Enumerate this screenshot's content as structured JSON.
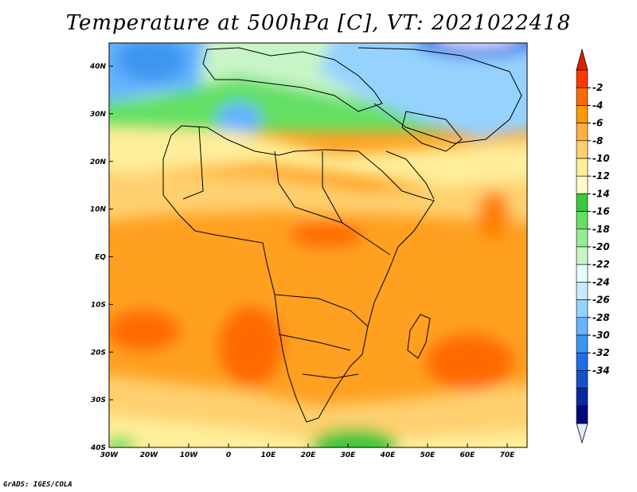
{
  "title": "Temperature at 500hPa [C], VT: 2021022418",
  "footer": "GrADS: IGES/COLA",
  "map": {
    "lon_ticks": [
      "30W",
      "20W",
      "10W",
      "0",
      "10E",
      "20E",
      "30E",
      "40E",
      "50E",
      "60E",
      "70E"
    ],
    "lat_ticks": [
      "40N",
      "30N",
      "20N",
      "10N",
      "EQ",
      "10S",
      "20S",
      "30S",
      "40S"
    ]
  },
  "colorbar": {
    "labels": [
      "-2",
      "-4",
      "-6",
      "-8",
      "-10",
      "-12",
      "-14",
      "-16",
      "-18",
      "-20",
      "-22",
      "-24",
      "-26",
      "-28",
      "-30",
      "-32",
      "-34"
    ],
    "colors": [
      "#ff3a00",
      "#ff6a00",
      "#ff9a00",
      "#ffb040",
      "#ffd070",
      "#ffee9a",
      "#fffbc8",
      "#3cc83c",
      "#64e064",
      "#96eb96",
      "#c8f5c8",
      "#e6fff8",
      "#c8ebff",
      "#96d2ff",
      "#64b4ff",
      "#3c96f0",
      "#1e6ee6",
      "#1450c8",
      "#0a28a0",
      "#000a78"
    ],
    "top_arrow_color": "#e02000",
    "bottom_arrow_color": "#e6e6ff"
  }
}
